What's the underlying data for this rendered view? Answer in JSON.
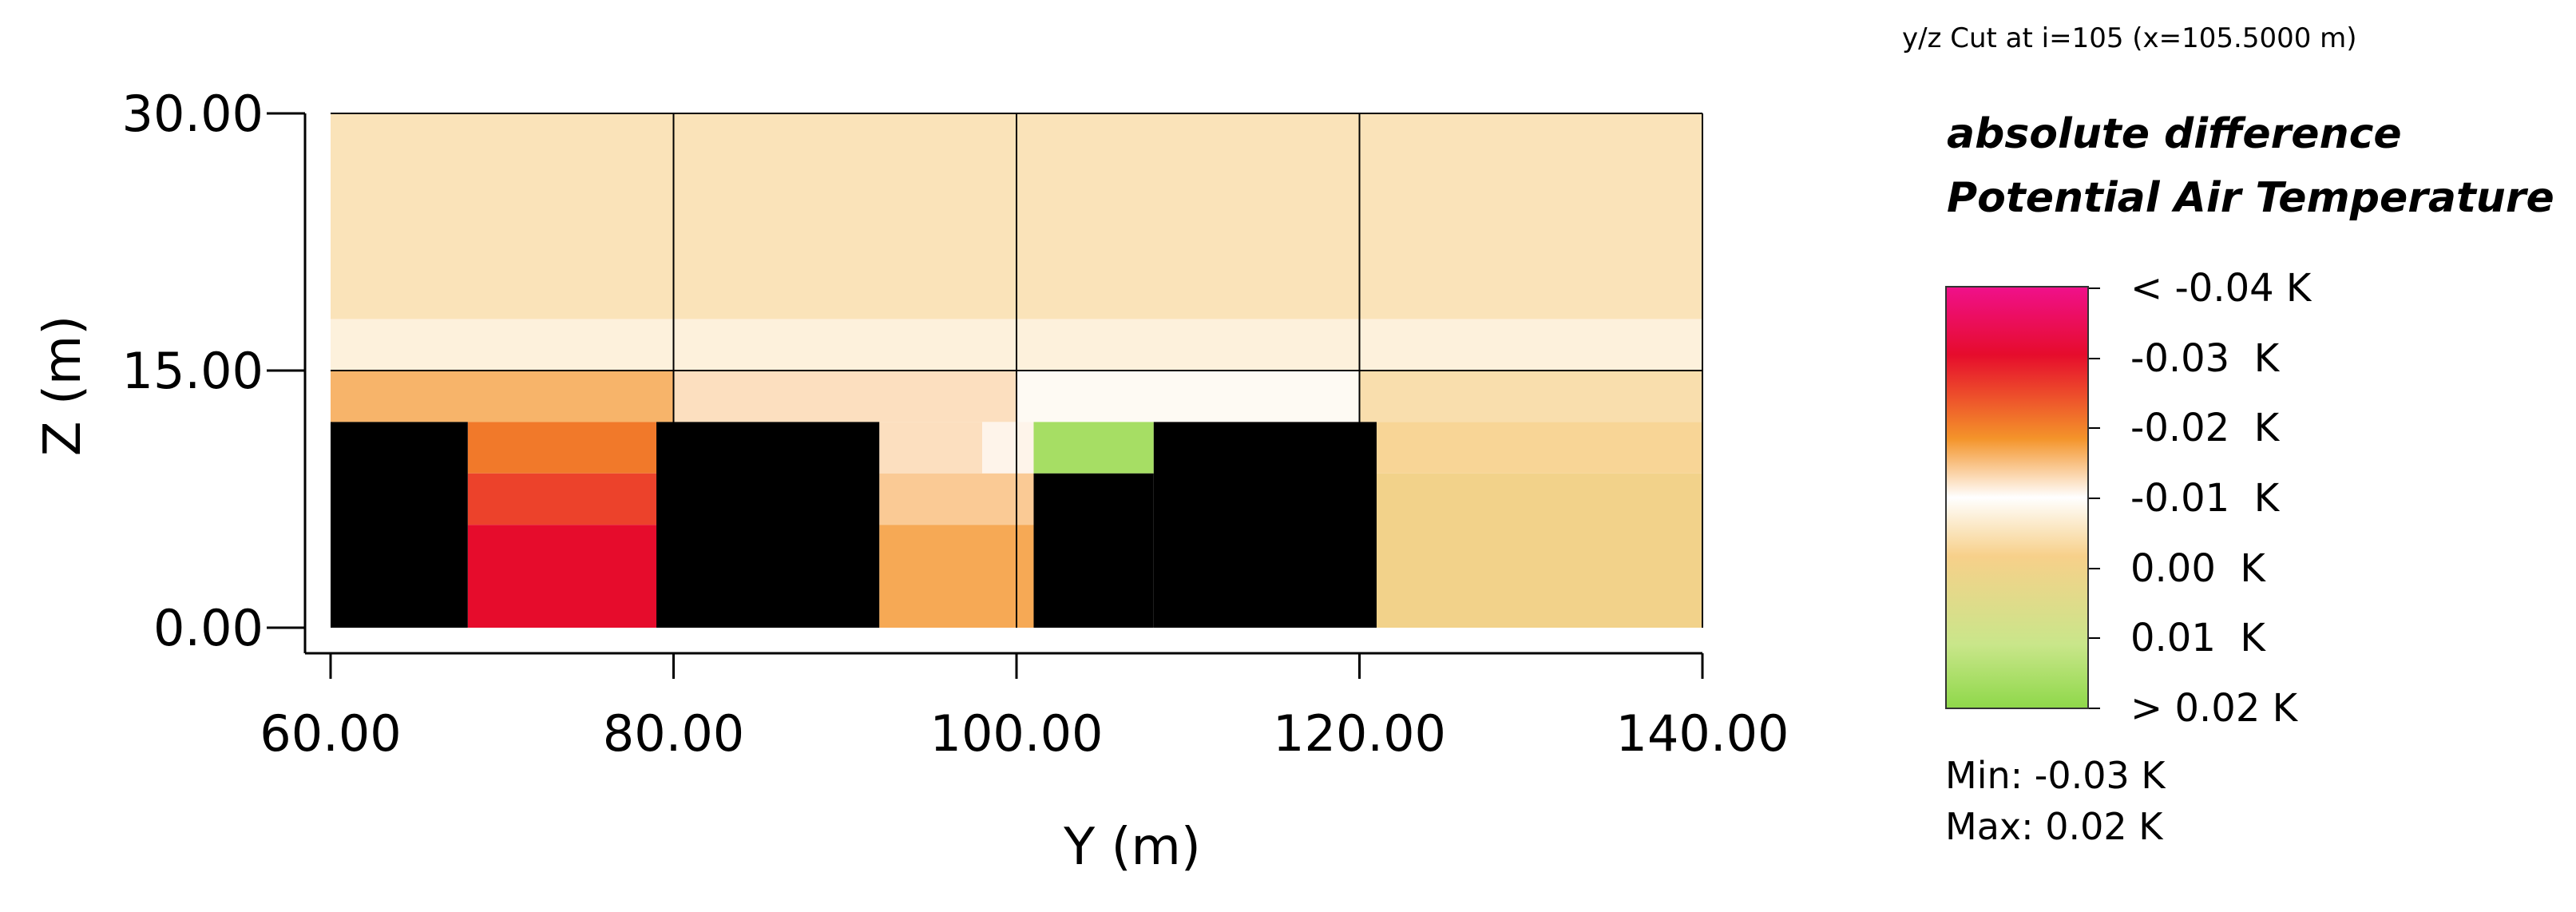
{
  "cut_title": "y/z Cut at i=105 (x=105.5000 m)",
  "legend": {
    "title_line1": "absolute difference",
    "title_line2": "Potential Air Temperature",
    "labels": [
      "< -0.04 K",
      "-0.03  K",
      "-0.02  K",
      "-0.01  K",
      "0.00  K",
      "0.01  K",
      "> 0.02 K"
    ],
    "min_label": "Min: -0.03 K",
    "max_label": "Max: 0.02 K"
  },
  "chart_data": {
    "type": "heatmap",
    "title": "",
    "xlabel": "Y (m)",
    "ylabel": "Z (m)",
    "xlim": [
      60,
      140
    ],
    "ylim": [
      0,
      30
    ],
    "x_ticks": [
      60,
      80,
      100,
      120,
      140
    ],
    "x_tick_labels": [
      "60.00",
      "80.00",
      "100.00",
      "120.00",
      "140.00"
    ],
    "y_ticks": [
      0,
      15,
      30
    ],
    "y_tick_labels": [
      "0.00",
      "15.00",
      "30.00"
    ],
    "grid": true,
    "colorscale": [
      [
        -0.04,
        "#f0108a"
      ],
      [
        -0.03,
        "#e60c2c"
      ],
      [
        -0.02,
        "#f4942a"
      ],
      [
        -0.01,
        "#ffffff"
      ],
      [
        0.0,
        "#f7d08a"
      ],
      [
        0.01,
        "#c9e68a"
      ],
      [
        0.02,
        "#8fd84a"
      ]
    ],
    "buildings": [
      {
        "y0": 60,
        "y1": 68,
        "z0": 0,
        "z1": 12
      },
      {
        "y0": 79,
        "y1": 92,
        "z0": 0,
        "z1": 12
      },
      {
        "y0": 101,
        "y1": 108,
        "z0": 0,
        "z1": 9
      },
      {
        "y0": 108,
        "y1": 121,
        "z0": 0,
        "z1": 12
      }
    ],
    "regions": [
      {
        "y0": 60,
        "y1": 140,
        "z0": 18,
        "z1": 30,
        "value": -0.004
      },
      {
        "y0": 60,
        "y1": 140,
        "z0": 15,
        "z1": 18,
        "value": -0.007
      },
      {
        "y0": 60,
        "y1": 80,
        "z0": 12,
        "z1": 15,
        "value": -0.017
      },
      {
        "y0": 80,
        "y1": 100,
        "z0": 12,
        "z1": 15,
        "value": -0.013
      },
      {
        "y0": 100,
        "y1": 120,
        "z0": 12,
        "z1": 15,
        "value": -0.009
      },
      {
        "y0": 120,
        "y1": 140,
        "z0": 12,
        "z1": 15,
        "value": -0.003
      },
      {
        "y0": 68,
        "y1": 79,
        "z0": 9,
        "z1": 12,
        "value": -0.022
      },
      {
        "y0": 68,
        "y1": 79,
        "z0": 6,
        "z1": 9,
        "value": -0.026
      },
      {
        "y0": 68,
        "y1": 79,
        "z0": 0,
        "z1": 6,
        "value": -0.03
      },
      {
        "y0": 92,
        "y1": 98,
        "z0": 9,
        "z1": 12,
        "value": -0.013
      },
      {
        "y0": 98,
        "y1": 101,
        "z0": 9,
        "z1": 12,
        "value": -0.011
      },
      {
        "y0": 92,
        "y1": 101,
        "z0": 6,
        "z1": 9,
        "value": -0.015
      },
      {
        "y0": 92,
        "y1": 101,
        "z0": 0,
        "z1": 6,
        "value": -0.018
      },
      {
        "y0": 101,
        "y1": 108,
        "z0": 9,
        "z1": 12,
        "value": 0.016
      },
      {
        "y0": 121,
        "y1": 140,
        "z0": 9,
        "z1": 12,
        "value": -0.001
      },
      {
        "y0": 121,
        "y1": 140,
        "z0": 0,
        "z1": 9,
        "value": 0.001
      }
    ]
  }
}
